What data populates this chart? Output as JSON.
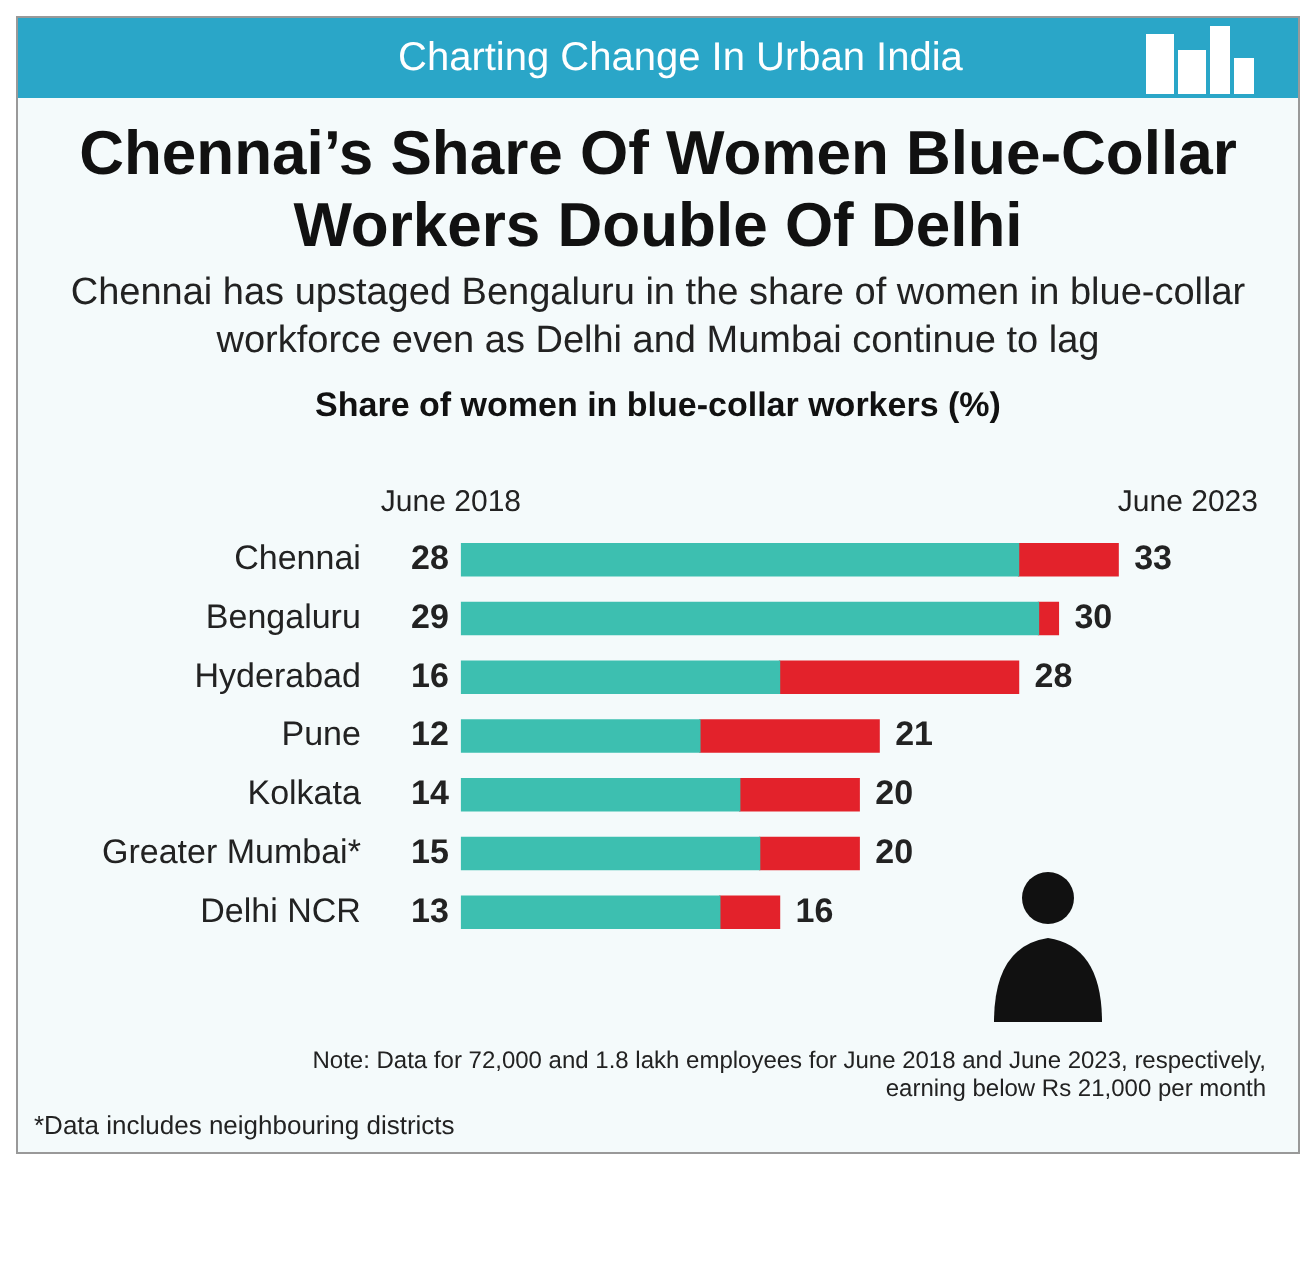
{
  "chart_data": {
    "type": "bar",
    "orientation": "horizontal",
    "stacked": true,
    "totals": [
      "33",
      "30",
      "28",
      "21",
      "20",
      "20",
      "16"
    ],
    "title": "Chennai’s Share Of Women Blue-Collar Workers Double Of Delhi",
    "subtitle": "Chennai has upstaged Bengaluru in the share of women in blue-collar workforce even as Delhi and Mumbai continue to lag",
    "xlabel": "Share of women in blue-collar workers (%)",
    "categories": [
      "Chennai",
      "Bengaluru",
      "Hyderabad",
      "Pune",
      "Kolkata",
      "Greater Mumbai*",
      "Delhi NCR"
    ],
    "series": [
      {
        "name": "June 2018",
        "color": "#3dbfb0",
        "values": [
          28,
          29,
          16,
          12,
          14,
          15,
          13
        ],
        "value_labels": [
          "28",
          "29",
          "16",
          "12",
          "14",
          "15",
          "13"
        ]
      },
      {
        "name": "June 2023",
        "color": "#e3222b",
        "values": [
          5,
          1,
          12,
          9,
          6,
          5,
          3
        ]
      }
    ],
    "legend": false,
    "grid": false,
    "annotations": [
      "Charting Change In Urban India",
      "Note: Data for 72,000 and 1.8 lakh employees for June 2018 and June 2023, respectively, earning below Rs 21,000 per month",
      "*Data includes neighbouring districts"
    ]
  }
}
